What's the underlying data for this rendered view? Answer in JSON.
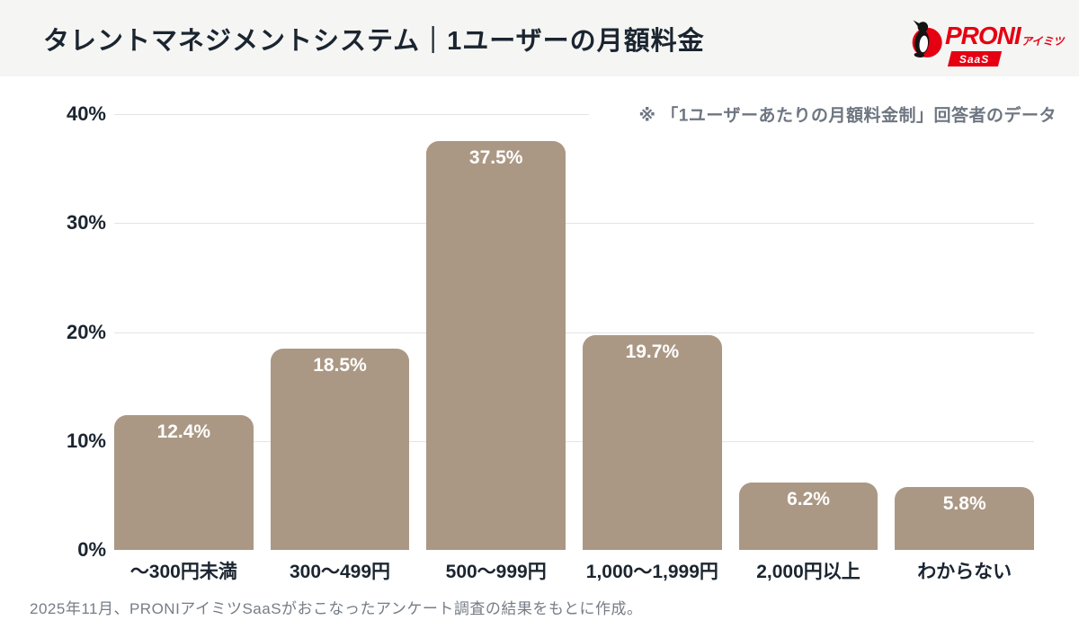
{
  "header": {
    "title": "タレントマネジメントシステム｜1ユーザーの月額料金",
    "logo": {
      "brand": "PRONI",
      "kana": "アイミツ",
      "badge": "SaaS"
    }
  },
  "annotation": "※ 「1ユーザーあたりの月額料金制」回答者のデータ",
  "footer": "2025年11月、PRONIアイミツSaaSがおこなったアンケート調査の結果をもとに作成。",
  "chart_data": {
    "type": "bar",
    "title": "タレントマネジメントシステム｜1ユーザーの月額料金",
    "categories": [
      "～300円未満",
      "300～499円",
      "500～999円",
      "1,000～1,999円",
      "2,000円以上",
      "わからない"
    ],
    "values": [
      12.4,
      18.5,
      37.5,
      19.7,
      6.2,
      5.8
    ],
    "value_labels": [
      "12.4%",
      "18.5%",
      "37.5%",
      "19.7%",
      "6.2%",
      "5.8%"
    ],
    "yticks": [
      "0%",
      "10%",
      "20%",
      "30%",
      "40%"
    ],
    "ylim": [
      0,
      40
    ],
    "xlabel": "",
    "ylabel": "",
    "grid": true,
    "legend": "none",
    "annotation": "※ 「1ユーザーあたりの月額料金制」回答者のデータ",
    "bar_color": "#ab9884",
    "value_label_color": "#ffffff"
  },
  "colors": {
    "brand_red": "#e50012",
    "bar": "#ab9884",
    "text_dark": "#1b2530",
    "text_gray": "#6e7681",
    "header_bg": "#f5f5f3",
    "gridline": "#e4e4e4"
  }
}
